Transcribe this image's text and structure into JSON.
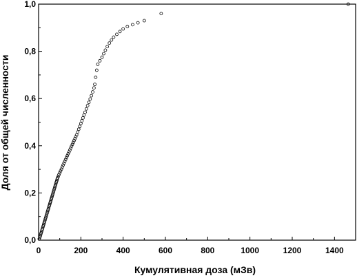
{
  "chart_data": {
    "type": "scatter",
    "title": "",
    "xlabel": "Кумулятивная доза (мЗв)",
    "ylabel": "Доля от общей численности",
    "xlim": [
      0,
      1500
    ],
    "ylim": [
      0,
      1
    ],
    "x_ticks": [
      "0",
      "200",
      "400",
      "600",
      "800",
      "1000",
      "1200",
      "1400"
    ],
    "x_tick_values": [
      0,
      200,
      400,
      600,
      800,
      1000,
      1200,
      1400
    ],
    "y_ticks": [
      "0,0",
      "0,2",
      "0,4",
      "0,6",
      "0,8",
      "1,0"
    ],
    "y_tick_values": [
      0,
      0.2,
      0.4,
      0.6,
      0.8,
      1.0
    ],
    "grid": false,
    "legend": false,
    "marker": "open-circle",
    "series": [
      {
        "x": [
          3,
          6,
          8,
          10,
          12,
          14,
          16,
          18,
          20,
          22,
          24,
          26,
          28,
          30,
          32,
          34,
          36,
          38,
          40,
          42,
          44,
          46,
          48,
          50,
          52,
          54,
          56,
          58,
          60,
          62,
          64,
          66,
          68,
          70,
          72,
          74,
          76,
          78,
          80,
          82,
          84,
          86,
          88,
          90,
          93,
          96,
          100,
          104,
          108,
          112,
          116,
          120,
          124,
          128,
          132,
          136,
          140,
          144,
          148,
          152,
          156,
          160,
          164,
          168,
          172,
          176,
          180,
          185,
          190,
          195,
          200,
          205,
          210,
          215,
          220,
          226,
          232,
          238,
          244,
          250,
          256,
          262,
          266,
          270,
          275,
          280,
          290,
          300,
          308,
          316,
          325,
          335,
          345,
          355,
          370,
          385,
          400,
          420,
          445,
          470,
          500,
          580,
          1465
        ],
        "y": [
          0.005,
          0.012,
          0.018,
          0.024,
          0.03,
          0.036,
          0.042,
          0.048,
          0.054,
          0.06,
          0.066,
          0.072,
          0.078,
          0.084,
          0.09,
          0.096,
          0.102,
          0.108,
          0.114,
          0.12,
          0.126,
          0.132,
          0.138,
          0.144,
          0.15,
          0.156,
          0.162,
          0.168,
          0.174,
          0.18,
          0.186,
          0.192,
          0.198,
          0.204,
          0.21,
          0.216,
          0.222,
          0.228,
          0.234,
          0.24,
          0.246,
          0.252,
          0.258,
          0.264,
          0.27,
          0.277,
          0.285,
          0.293,
          0.301,
          0.31,
          0.318,
          0.326,
          0.334,
          0.342,
          0.35,
          0.358,
          0.366,
          0.374,
          0.382,
          0.39,
          0.398,
          0.406,
          0.414,
          0.422,
          0.43,
          0.438,
          0.446,
          0.458,
          0.47,
          0.482,
          0.494,
          0.506,
          0.518,
          0.53,
          0.542,
          0.556,
          0.57,
          0.584,
          0.598,
          0.612,
          0.628,
          0.645,
          0.66,
          0.69,
          0.72,
          0.745,
          0.76,
          0.775,
          0.79,
          0.805,
          0.82,
          0.835,
          0.848,
          0.86,
          0.872,
          0.884,
          0.895,
          0.905,
          0.913,
          0.921,
          0.93,
          0.96,
          1.0
        ]
      }
    ]
  }
}
